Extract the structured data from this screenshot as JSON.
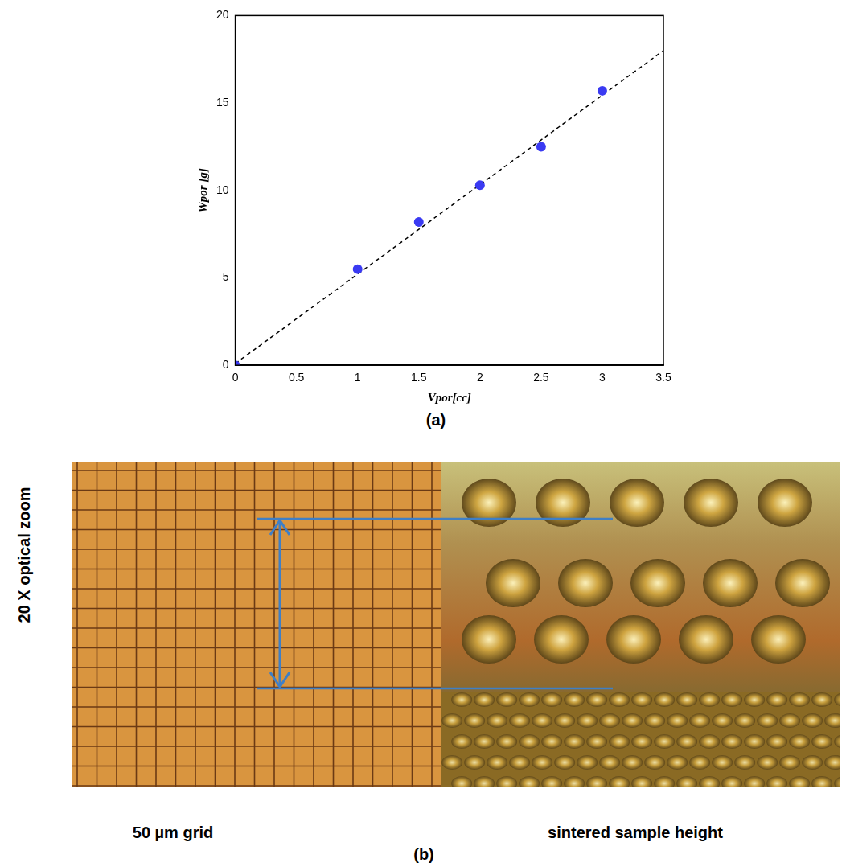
{
  "chart_data": {
    "type": "scatter",
    "x_label": "Vpor[cc]",
    "y_label": "Wpor [g]",
    "xlim": [
      0,
      3.5
    ],
    "xticks": [
      0,
      0.5,
      1,
      1.5,
      2,
      2.5,
      3,
      3.5
    ],
    "ylim": [
      0,
      20
    ],
    "yticks": [
      0,
      5,
      10,
      15,
      20
    ],
    "grid": false,
    "series": [
      {
        "type": "scatter",
        "marker": "circle",
        "color": "#3a3af2",
        "x": [
          0,
          1,
          1.5,
          2,
          2.5,
          3
        ],
        "values": [
          0,
          5.5,
          8.2,
          10.3,
          12.5,
          15.7
        ]
      },
      {
        "type": "line",
        "line_style": "dashed",
        "color": "#000000",
        "x": [
          0,
          3.5
        ],
        "values": [
          0.1,
          18
        ]
      }
    ]
  },
  "figure": {
    "panel_a": {
      "label": "(a)"
    },
    "panel_b": {
      "label": "(b)",
      "side_label": "20 X optical zoom",
      "left_caption": "50 µm grid",
      "right_caption": "sintered sample height"
    }
  }
}
